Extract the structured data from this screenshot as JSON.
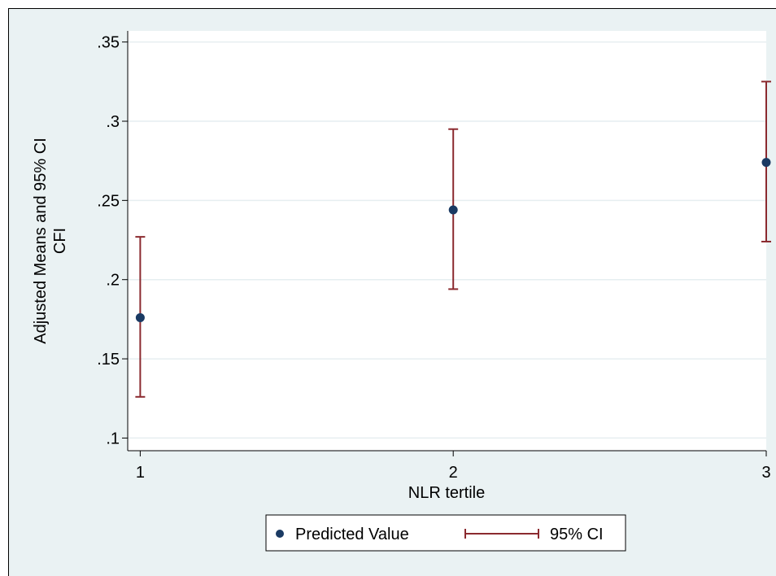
{
  "chart_data": {
    "type": "scatter",
    "xlabel": "NLR tertile",
    "ylabel_lines": [
      "Adjusted Means and 95% CI",
      "CFI"
    ],
    "x_ticks": [
      1,
      2,
      3
    ],
    "x_tick_labels": [
      "1",
      "2",
      "3"
    ],
    "y_ticks": [
      0.1,
      0.15,
      0.2,
      0.25,
      0.3,
      0.35
    ],
    "y_tick_labels": [
      ".1",
      ".15",
      ".2",
      ".25",
      ".3",
      ".35"
    ],
    "xlim": [
      0.96,
      3.0
    ],
    "ylim": [
      0.092,
      0.357
    ],
    "grid": true,
    "legend_position": "bottom",
    "series": [
      {
        "name": "Predicted Value",
        "marker": "dot",
        "color": "#1a3a63",
        "points": [
          {
            "x": 1,
            "y": 0.176
          },
          {
            "x": 2,
            "y": 0.244
          },
          {
            "x": 3,
            "y": 0.274
          }
        ]
      },
      {
        "name": "95% CI",
        "marker": "capped-range",
        "color": "#8b2a2f",
        "ranges": [
          {
            "x": 1,
            "low": 0.126,
            "high": 0.227
          },
          {
            "x": 2,
            "low": 0.194,
            "high": 0.295
          },
          {
            "x": 3,
            "low": 0.224,
            "high": 0.325
          }
        ]
      }
    ]
  }
}
